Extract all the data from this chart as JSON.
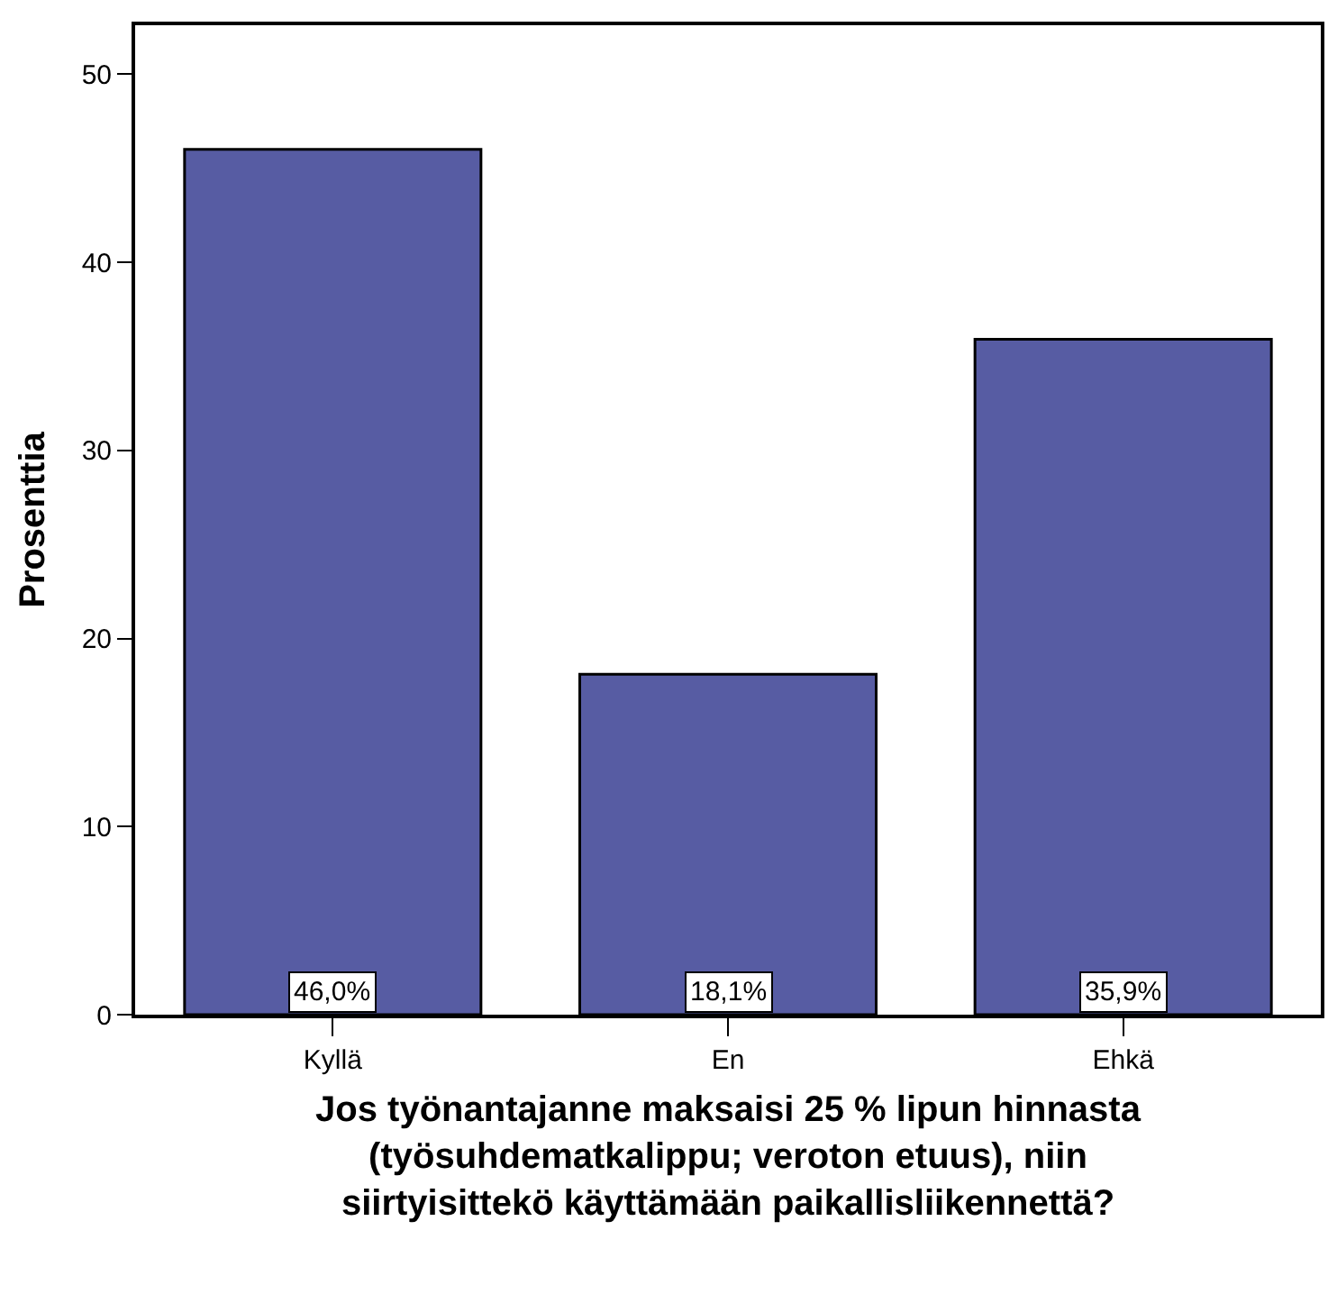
{
  "chart_data": {
    "type": "bar",
    "categories": [
      "Kyllä",
      "En",
      "Ehkä"
    ],
    "values": [
      46.0,
      18.1,
      35.9
    ],
    "value_labels": [
      "46,0%",
      "18,1%",
      "35,9%"
    ],
    "color": "#575ca3",
    "ylim": [
      0,
      52.6
    ],
    "yticks": [
      0,
      10,
      20,
      30,
      40,
      50
    ],
    "ylabel": "Prosenttia",
    "xlabel": "Jos työnantajanne maksaisi 25 % lipun hinnasta\n(työsuhdematkalippu; veroton etuus), niin\nsiirtyisittekö käyttämään paikallisliikennettä?",
    "legend": false
  }
}
